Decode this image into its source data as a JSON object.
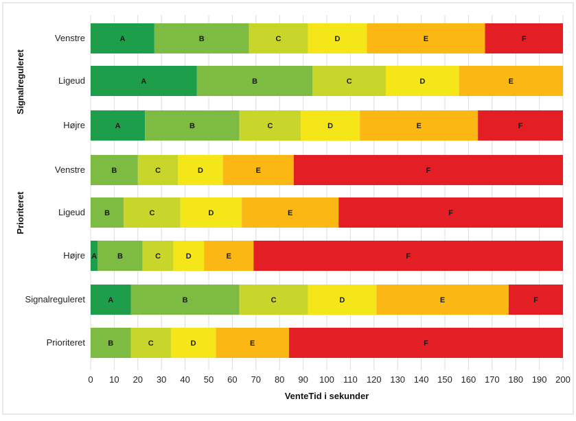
{
  "chart_data": {
    "type": "bar",
    "orientation": "horizontal",
    "stacked": true,
    "title": "",
    "xlabel": "VenteTid i sekunder",
    "ylabel": "",
    "xlim": [
      0,
      200
    ],
    "x_ticks": [
      0,
      10,
      20,
      30,
      40,
      50,
      60,
      70,
      80,
      90,
      100,
      110,
      120,
      130,
      140,
      150,
      160,
      170,
      180,
      190,
      200
    ],
    "grid": "vertical",
    "legend": "none",
    "level_colors": {
      "A": "#1e9e4a",
      "B": "#7dbb42",
      "C": "#c8d62b",
      "D": "#f4e619",
      "E": "#fbb714",
      "F": "#e31f25"
    },
    "groups": [
      {
        "name": "Signalreguleret",
        "rows": [
          0,
          1,
          2
        ]
      },
      {
        "name": "Prioriteret",
        "rows": [
          3,
          4,
          5
        ]
      }
    ],
    "rows": [
      {
        "label": "Venstre",
        "segments": [
          {
            "level": "A",
            "start": 0,
            "end": 27
          },
          {
            "level": "B",
            "start": 27,
            "end": 67
          },
          {
            "level": "C",
            "start": 67,
            "end": 92
          },
          {
            "level": "D",
            "start": 92,
            "end": 117
          },
          {
            "level": "E",
            "start": 117,
            "end": 167
          },
          {
            "level": "F",
            "start": 167,
            "end": 200
          }
        ]
      },
      {
        "label": "Ligeud",
        "segments": [
          {
            "level": "A",
            "start": 0,
            "end": 45
          },
          {
            "level": "B",
            "start": 45,
            "end": 94
          },
          {
            "level": "C",
            "start": 94,
            "end": 125
          },
          {
            "level": "D",
            "start": 125,
            "end": 156
          },
          {
            "level": "E",
            "start": 156,
            "end": 200
          }
        ]
      },
      {
        "label": "Højre",
        "segments": [
          {
            "level": "A",
            "start": 0,
            "end": 23
          },
          {
            "level": "B",
            "start": 23,
            "end": 63
          },
          {
            "level": "C",
            "start": 63,
            "end": 89
          },
          {
            "level": "D",
            "start": 89,
            "end": 114
          },
          {
            "level": "E",
            "start": 114,
            "end": 164
          },
          {
            "level": "F",
            "start": 164,
            "end": 200
          }
        ]
      },
      {
        "label": "Venstre",
        "segments": [
          {
            "level": "B",
            "start": 0,
            "end": 20
          },
          {
            "level": "C",
            "start": 20,
            "end": 37
          },
          {
            "level": "D",
            "start": 37,
            "end": 56
          },
          {
            "level": "E",
            "start": 56,
            "end": 86
          },
          {
            "level": "F",
            "start": 86,
            "end": 200
          }
        ]
      },
      {
        "label": "Ligeud",
        "segments": [
          {
            "level": "B",
            "start": 0,
            "end": 14
          },
          {
            "level": "C",
            "start": 14,
            "end": 38
          },
          {
            "level": "D",
            "start": 38,
            "end": 64
          },
          {
            "level": "E",
            "start": 64,
            "end": 105
          },
          {
            "level": "F",
            "start": 105,
            "end": 200
          }
        ]
      },
      {
        "label": "Højre",
        "segments": [
          {
            "level": "A",
            "start": 0,
            "end": 3
          },
          {
            "level": "B",
            "start": 3,
            "end": 22
          },
          {
            "level": "C",
            "start": 22,
            "end": 35
          },
          {
            "level": "D",
            "start": 35,
            "end": 48
          },
          {
            "level": "E",
            "start": 48,
            "end": 69
          },
          {
            "level": "F",
            "start": 69,
            "end": 200
          }
        ]
      },
      {
        "label": "Signalreguleret",
        "segments": [
          {
            "level": "A",
            "start": 0,
            "end": 17
          },
          {
            "level": "B",
            "start": 17,
            "end": 63
          },
          {
            "level": "C",
            "start": 63,
            "end": 92
          },
          {
            "level": "D",
            "start": 92,
            "end": 121
          },
          {
            "level": "E",
            "start": 121,
            "end": 177
          },
          {
            "level": "F",
            "start": 177,
            "end": 200
          }
        ]
      },
      {
        "label": "Prioriteret",
        "segments": [
          {
            "level": "B",
            "start": 0,
            "end": 17
          },
          {
            "level": "C",
            "start": 17,
            "end": 34
          },
          {
            "level": "D",
            "start": 34,
            "end": 53
          },
          {
            "level": "E",
            "start": 53,
            "end": 84
          },
          {
            "level": "F",
            "start": 84,
            "end": 200
          }
        ]
      }
    ]
  }
}
